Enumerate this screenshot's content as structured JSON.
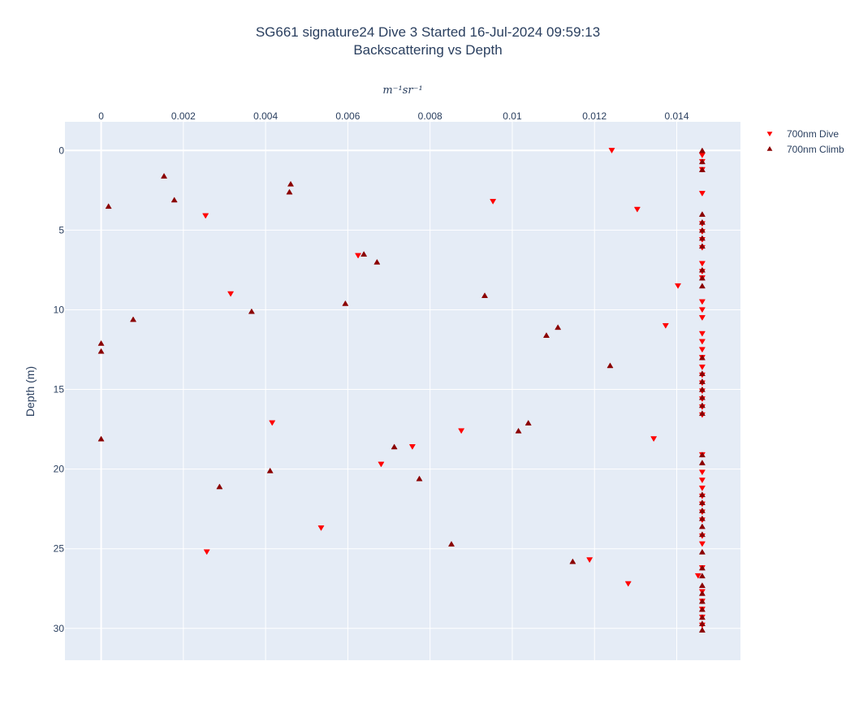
{
  "chart_data": {
    "type": "scatter",
    "title": "SG661 signature24 Dive 3 Started 16-Jul-2024 09:59:13",
    "subtitle": "Backscattering vs Depth",
    "xlabel": "m⁻¹sr⁻¹",
    "ylabel": "Depth (m)",
    "xlim": [
      -0.00088,
      0.01555
    ],
    "ylim": [
      32.0,
      -1.8
    ],
    "y_reversed": true,
    "x_axis_position": "top",
    "x_ticks": [
      0,
      0.002,
      0.004,
      0.006,
      0.008,
      0.01,
      0.012,
      0.014
    ],
    "x_tick_labels": [
      "0",
      "0.002",
      "0.004",
      "0.006",
      "0.008",
      "0.01",
      "0.012",
      "0.014"
    ],
    "y_ticks": [
      0,
      5,
      10,
      15,
      20,
      25,
      30
    ],
    "y_tick_labels": [
      "0",
      "5",
      "10",
      "15",
      "20",
      "25",
      "30"
    ],
    "grid": true,
    "legend_position": "top-right",
    "series": [
      {
        "name": "700nm Dive",
        "marker": "triangle-down",
        "color": "#ff0000",
        "points": [
          [
            0.01242,
            0.0
          ],
          [
            0.01462,
            0.3
          ],
          [
            0.01462,
            0.7
          ],
          [
            0.01462,
            1.2
          ],
          [
            0.01462,
            2.7
          ],
          [
            0.00953,
            3.2
          ],
          [
            0.01304,
            3.7
          ],
          [
            0.00254,
            4.1
          ],
          [
            0.01462,
            4.6
          ],
          [
            0.01462,
            5.1
          ],
          [
            0.01462,
            5.6
          ],
          [
            0.01462,
            6.1
          ],
          [
            0.00625,
            6.6
          ],
          [
            0.01462,
            7.1
          ],
          [
            0.01462,
            7.6
          ],
          [
            0.01462,
            8.0
          ],
          [
            0.01403,
            8.5
          ],
          [
            0.00315,
            9.0
          ],
          [
            0.01462,
            9.5
          ],
          [
            0.01462,
            10.0
          ],
          [
            0.01462,
            10.5
          ],
          [
            0.01373,
            11.0
          ],
          [
            0.01462,
            11.5
          ],
          [
            0.01462,
            12.0
          ],
          [
            0.01462,
            12.5
          ],
          [
            0.01462,
            13.0
          ],
          [
            0.01462,
            13.6
          ],
          [
            0.01462,
            14.1
          ],
          [
            0.01462,
            14.6
          ],
          [
            0.01462,
            15.1
          ],
          [
            0.01462,
            15.6
          ],
          [
            0.01462,
            16.1
          ],
          [
            0.01462,
            16.6
          ],
          [
            0.00416,
            17.1
          ],
          [
            0.00876,
            17.6
          ],
          [
            0.01344,
            18.1
          ],
          [
            0.00757,
            18.6
          ],
          [
            0.01462,
            19.1
          ],
          [
            0.00681,
            19.7
          ],
          [
            0.01462,
            20.2
          ],
          [
            0.01462,
            20.7
          ],
          [
            0.01462,
            21.2
          ],
          [
            0.01462,
            21.7
          ],
          [
            0.01462,
            22.2
          ],
          [
            0.01462,
            22.7
          ],
          [
            0.01462,
            23.2
          ],
          [
            0.00535,
            23.7
          ],
          [
            0.01462,
            24.2
          ],
          [
            0.01462,
            24.7
          ],
          [
            0.00257,
            25.2
          ],
          [
            0.01188,
            25.7
          ],
          [
            0.01462,
            26.2
          ],
          [
            0.01452,
            26.7
          ],
          [
            0.01282,
            27.2
          ],
          [
            0.01462,
            27.7
          ],
          [
            0.01462,
            28.3
          ],
          [
            0.01462,
            28.8
          ],
          [
            0.01462,
            29.3
          ],
          [
            0.01462,
            29.8
          ]
        ]
      },
      {
        "name": "700nm Climb",
        "marker": "triangle-up",
        "color": "#8b0000",
        "points": [
          [
            0.01462,
            0.0
          ],
          [
            0.01462,
            0.7
          ],
          [
            0.01462,
            1.2
          ],
          [
            0.00153,
            1.6
          ],
          [
            0.00461,
            2.1
          ],
          [
            0.00458,
            2.6
          ],
          [
            0.00178,
            3.1
          ],
          [
            0.00018,
            3.5
          ],
          [
            0.01462,
            4.0
          ],
          [
            0.01462,
            4.5
          ],
          [
            0.01462,
            5.0
          ],
          [
            0.01462,
            5.5
          ],
          [
            0.01462,
            6.0
          ],
          [
            0.00639,
            6.5
          ],
          [
            0.00671,
            7.0
          ],
          [
            0.01462,
            7.5
          ],
          [
            0.01462,
            8.0
          ],
          [
            0.01462,
            8.5
          ],
          [
            0.00933,
            9.1
          ],
          [
            0.00594,
            9.6
          ],
          [
            0.00366,
            10.1
          ],
          [
            0.00078,
            10.6
          ],
          [
            0.01111,
            11.1
          ],
          [
            0.01083,
            11.6
          ],
          [
            0.0,
            12.1
          ],
          [
            0.0,
            12.6
          ],
          [
            0.01462,
            13.0
          ],
          [
            0.01238,
            13.5
          ],
          [
            0.01462,
            14.0
          ],
          [
            0.01462,
            14.5
          ],
          [
            0.01462,
            15.0
          ],
          [
            0.01462,
            15.5
          ],
          [
            0.01462,
            16.0
          ],
          [
            0.01462,
            16.5
          ],
          [
            0.01039,
            17.1
          ],
          [
            0.01015,
            17.6
          ],
          [
            0.0,
            18.1
          ],
          [
            0.00713,
            18.6
          ],
          [
            0.01462,
            19.1
          ],
          [
            0.01462,
            19.6
          ],
          [
            0.00411,
            20.1
          ],
          [
            0.00774,
            20.6
          ],
          [
            0.00288,
            21.1
          ],
          [
            0.01462,
            21.6
          ],
          [
            0.01462,
            22.1
          ],
          [
            0.01462,
            22.6
          ],
          [
            0.01462,
            23.1
          ],
          [
            0.01462,
            23.6
          ],
          [
            0.01462,
            24.1
          ],
          [
            0.00852,
            24.7
          ],
          [
            0.01462,
            25.2
          ],
          [
            0.01147,
            25.8
          ],
          [
            0.01462,
            26.2
          ],
          [
            0.01462,
            26.7
          ],
          [
            0.01462,
            27.3
          ],
          [
            0.01462,
            27.8
          ],
          [
            0.01462,
            28.3
          ],
          [
            0.01462,
            28.8
          ],
          [
            0.01462,
            29.3
          ],
          [
            0.01462,
            29.7
          ],
          [
            0.01462,
            30.1
          ]
        ]
      }
    ]
  }
}
